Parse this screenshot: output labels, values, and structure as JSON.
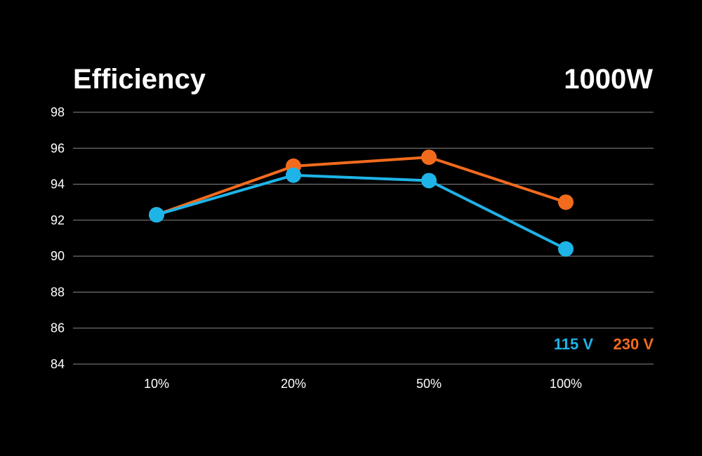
{
  "chart_data": {
    "type": "line",
    "title": "Efficiency",
    "subtitle": "1000W",
    "categories": [
      "10%",
      "20%",
      "50%",
      "100%"
    ],
    "ylim": [
      84,
      98
    ],
    "yticks": [
      98,
      96,
      94,
      92,
      90,
      88,
      86,
      84
    ],
    "grid": true,
    "legend_position": "bottom-right",
    "series": [
      {
        "name": "115 V",
        "color": "#1EB4E8",
        "values": [
          92.3,
          94.5,
          94.2,
          90.4
        ]
      },
      {
        "name": "230 V",
        "color": "#F26B1D",
        "values": [
          92.3,
          95.0,
          95.5,
          93.0
        ]
      }
    ]
  }
}
